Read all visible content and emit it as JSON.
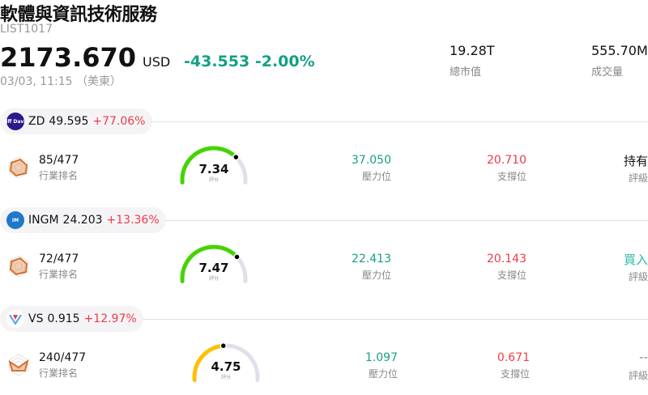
{
  "header": {
    "title": "軟體與資訊技術服務",
    "code": "LIST1017",
    "price": "2173.670",
    "currency": "USD",
    "change": "-43.553",
    "change_pct": "-2.00%",
    "time": "03/03, 11:15 （美東）",
    "stats": [
      {
        "value": "19.28T",
        "label": "總市值"
      },
      {
        "value": "555.70M",
        "label": "成交量"
      }
    ]
  },
  "colors": {
    "down": "#14a085",
    "up": "#f03a4a",
    "buy": "#2bb6a5"
  },
  "labels": {
    "rank": "行業排名",
    "resistance": "壓力位",
    "support": "支撐位",
    "rating": "評級",
    "score": "評分"
  },
  "stocks": [
    {
      "symbol": "ZD",
      "price": "49.595",
      "change_pct": "+77.06%",
      "logo_text": "Ziff Davis",
      "logo_color": "#2a1a8c",
      "rank": "85/477",
      "score": "7.34",
      "score_value": 7.34,
      "gauge_color": "#44d400",
      "resistance": "37.050",
      "support": "20.710",
      "rating": "持有"
    },
    {
      "symbol": "INGM",
      "price": "24.203",
      "change_pct": "+13.36%",
      "logo_text": "IM",
      "logo_color": "#1f78c8",
      "rank": "72/477",
      "score": "7.47",
      "score_value": 7.47,
      "gauge_color": "#44d400",
      "resistance": "22.413",
      "support": "20.143",
      "rating": "買入"
    },
    {
      "symbol": "VS",
      "price": "0.915",
      "change_pct": "+12.97%",
      "logo_text": "V",
      "logo_color": "#ffffff",
      "rank": "240/477",
      "score": "4.75",
      "score_value": 4.75,
      "gauge_color": "#ffc000",
      "resistance": "1.097",
      "support": "0.671",
      "rating": "--"
    }
  ]
}
